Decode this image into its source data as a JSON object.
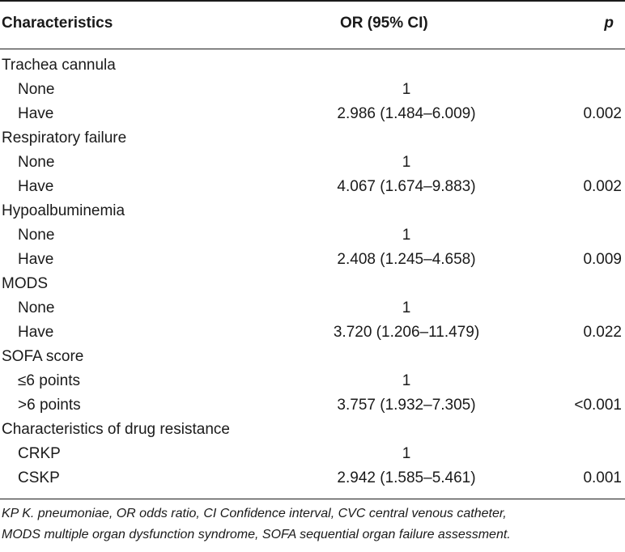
{
  "header": {
    "characteristics": "Characteristics",
    "or": "OR (95% CI)",
    "p": "p"
  },
  "rows": [
    {
      "label": "Trachea cannula",
      "or": "",
      "p": "",
      "sub": false
    },
    {
      "label": "None",
      "or": "1",
      "p": "",
      "sub": true
    },
    {
      "label": "Have",
      "or": "2.986 (1.484–6.009)",
      "p": "0.002",
      "sub": true
    },
    {
      "label": "Respiratory failure",
      "or": "",
      "p": "",
      "sub": false
    },
    {
      "label": "None",
      "or": "1",
      "p": "",
      "sub": true
    },
    {
      "label": "Have",
      "or": "4.067 (1.674–9.883)",
      "p": "0.002",
      "sub": true
    },
    {
      "label": "Hypoalbuminemia",
      "or": "",
      "p": "",
      "sub": false
    },
    {
      "label": "None",
      "or": "1",
      "p": "",
      "sub": true
    },
    {
      "label": "Have",
      "or": "2.408 (1.245–4.658)",
      "p": "0.009",
      "sub": true
    },
    {
      "label": "MODS",
      "or": "",
      "p": "",
      "sub": false
    },
    {
      "label": "None",
      "or": "1",
      "p": "",
      "sub": true
    },
    {
      "label": "Have",
      "or": "3.720 (1.206–11.479)",
      "p": "0.022",
      "sub": true
    },
    {
      "label": "SOFA score",
      "or": "",
      "p": "",
      "sub": false
    },
    {
      "label": "≤6 points",
      "or": "1",
      "p": "",
      "sub": true
    },
    {
      "label": ">6 points",
      "or": "3.757 (1.932–7.305)",
      "p": "<0.001",
      "sub": true
    },
    {
      "label": "Characteristics of drug resistance",
      "or": "",
      "p": "",
      "sub": false
    },
    {
      "label": "CRKP",
      "or": "1",
      "p": "",
      "sub": true
    },
    {
      "label": "CSKP",
      "or": "2.942 (1.585–5.461)",
      "p": "0.001",
      "sub": true
    }
  ],
  "footnote": {
    "line1": "KP K. pneumoniae, OR odds ratio, CI Confidence interval, CVC central venous catheter,",
    "line2": "MODS multiple organ dysfunction syndrome, SOFA sequential organ failure assessment."
  }
}
